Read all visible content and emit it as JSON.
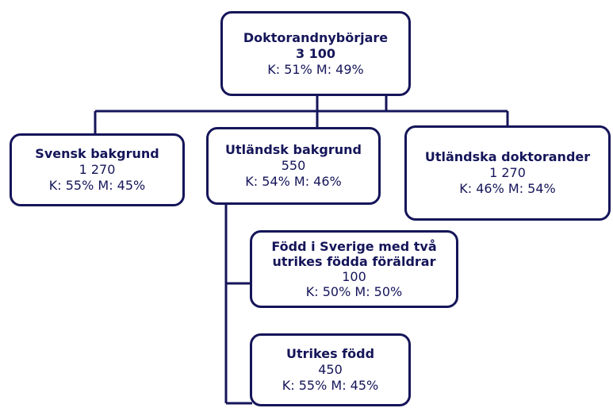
{
  "nodes": [
    {
      "title": "Doktorandnybörjare",
      "count": "3 100",
      "split": "K: 51% M: 49%"
    },
    {
      "title": "Svensk bakgrund",
      "count": "1 270",
      "split": "K: 55% M: 45%"
    },
    {
      "title": "Utländsk bakgrund",
      "count": "550",
      "split": "K: 54% M: 46%"
    },
    {
      "title": "Utländska doktorander",
      "count": "1 270",
      "split": "K: 46% M: 54%"
    },
    {
      "title": "Född i Sverige med två utrikes födda föräldrar",
      "count": "100",
      "split": "K: 50% M: 50%"
    },
    {
      "title": "Utrikes född",
      "count": "450",
      "split": "K: 55% M: 45%"
    }
  ]
}
